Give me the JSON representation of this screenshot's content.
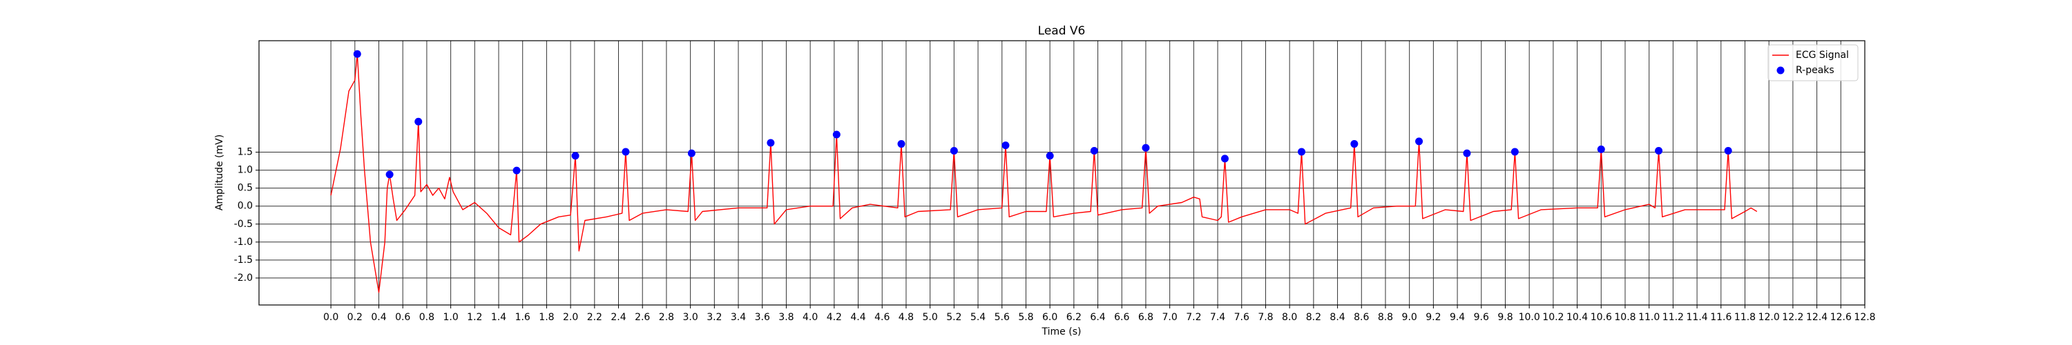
{
  "chart_data": {
    "type": "line",
    "title": "Lead V6",
    "x_label": "Time (s)",
    "y_label": "Amplitude (mV)",
    "xlim": [
      -0.6,
      12.8
    ],
    "ylim": [
      -2.75,
      4.6
    ],
    "xticks": [
      {
        "value": 0,
        "label": "0.0"
      },
      0.2,
      0.4,
      0.6,
      0.8,
      {
        "value": 1,
        "label": "1.0"
      },
      1.2,
      1.4,
      1.6,
      1.8,
      {
        "value": 2,
        "label": "2.0"
      },
      2.2,
      2.4,
      2.6,
      2.8,
      {
        "value": 3,
        "label": "3.0"
      },
      3.2,
      3.4,
      3.6,
      3.8,
      {
        "value": 4,
        "label": "4.0"
      },
      4.2,
      4.4,
      4.6,
      4.8,
      {
        "value": 5,
        "label": "5.0"
      },
      5.2,
      5.4,
      5.6,
      5.8,
      {
        "value": 6,
        "label": "6.0"
      },
      6.2,
      6.4,
      6.6,
      6.8,
      {
        "value": 7,
        "label": "7.0"
      },
      7.2,
      7.4,
      7.6,
      7.8,
      {
        "value": 8,
        "label": "8.0"
      },
      8.2,
      8.4,
      8.6,
      8.8,
      {
        "value": 9,
        "label": "9.0"
      },
      9.2,
      9.4,
      9.6,
      9.8,
      {
        "value": 10,
        "label": "10.0"
      },
      10.2,
      10.4,
      10.6,
      10.8,
      {
        "value": 11,
        "label": "11.0"
      },
      11.2,
      11.4,
      11.6,
      11.8,
      {
        "value": 12,
        "label": "12.0"
      },
      12.2,
      12.4,
      12.6,
      12.8
    ],
    "yticks": [
      {
        "value": -2,
        "label": "-2.0"
      },
      -1.5,
      {
        "value": -1,
        "label": "-1.0"
      },
      -0.5,
      {
        "value": 0,
        "label": "0.0"
      },
      0.5,
      {
        "value": 1,
        "label": "1.0"
      },
      1.5
    ],
    "grid": true,
    "legend": "upper right",
    "series": [
      {
        "name": "ECG Signal",
        "type": "line",
        "color": "#ff0000",
        "x": [
          0.0,
          0.08,
          0.15,
          0.2,
          0.22,
          0.25,
          0.28,
          0.33,
          0.4,
          0.45,
          0.47,
          0.49,
          0.52,
          0.55,
          0.62,
          0.7,
          0.73,
          0.75,
          0.8,
          0.85,
          0.9,
          0.95,
          0.99,
          1.02,
          1.1,
          1.2,
          1.3,
          1.4,
          1.5,
          1.55,
          1.57,
          1.65,
          1.75,
          1.9,
          2.0,
          2.04,
          2.07,
          2.12,
          2.3,
          2.43,
          2.46,
          2.49,
          2.6,
          2.8,
          2.98,
          3.01,
          3.04,
          3.1,
          3.4,
          3.64,
          3.67,
          3.7,
          3.8,
          4.0,
          4.19,
          4.22,
          4.25,
          4.35,
          4.5,
          4.73,
          4.76,
          4.79,
          4.9,
          5.17,
          5.2,
          5.23,
          5.4,
          5.6,
          5.63,
          5.66,
          5.8,
          5.97,
          6.0,
          6.03,
          6.2,
          6.34,
          6.37,
          6.4,
          6.6,
          6.77,
          6.8,
          6.83,
          6.9,
          7.1,
          7.2,
          7.25,
          7.27,
          7.4,
          7.43,
          7.46,
          7.49,
          7.6,
          7.8,
          8.0,
          8.07,
          8.1,
          8.13,
          8.3,
          8.51,
          8.54,
          8.57,
          8.7,
          8.9,
          9.05,
          9.08,
          9.11,
          9.3,
          9.45,
          9.48,
          9.51,
          9.7,
          9.85,
          9.88,
          9.91,
          10.1,
          10.4,
          10.57,
          10.6,
          10.63,
          10.8,
          11.0,
          11.05,
          11.08,
          11.11,
          11.3,
          11.63,
          11.66,
          11.69,
          11.8,
          11.85,
          11.9
        ],
        "values": [
          0.3,
          1.6,
          3.2,
          3.5,
          4.23,
          2.5,
          1.0,
          -1.0,
          -2.4,
          -1.0,
          0.5,
          0.88,
          0.2,
          -0.4,
          -0.1,
          0.3,
          2.35,
          0.4,
          0.6,
          0.3,
          0.5,
          0.2,
          0.8,
          0.4,
          -0.1,
          0.1,
          -0.2,
          -0.6,
          -0.8,
          0.99,
          -1.0,
          -0.8,
          -0.5,
          -0.3,
          -0.25,
          1.4,
          -1.25,
          -0.4,
          -0.3,
          -0.2,
          1.51,
          -0.4,
          -0.2,
          -0.1,
          -0.15,
          1.47,
          -0.4,
          -0.15,
          -0.05,
          -0.05,
          1.76,
          -0.5,
          -0.1,
          0.0,
          0.0,
          1.99,
          -0.35,
          -0.05,
          0.05,
          -0.05,
          1.73,
          -0.3,
          -0.15,
          -0.1,
          1.54,
          -0.3,
          -0.1,
          -0.05,
          1.69,
          -0.3,
          -0.15,
          -0.15,
          1.4,
          -0.3,
          -0.2,
          -0.15,
          1.54,
          -0.25,
          -0.1,
          -0.05,
          1.62,
          -0.2,
          0.0,
          0.1,
          0.25,
          0.2,
          -0.3,
          -0.4,
          -0.3,
          1.32,
          -0.45,
          -0.3,
          -0.1,
          -0.1,
          -0.2,
          1.51,
          -0.5,
          -0.2,
          -0.05,
          1.73,
          -0.3,
          -0.05,
          0.0,
          0.0,
          1.8,
          -0.35,
          -0.1,
          -0.15,
          1.47,
          -0.4,
          -0.15,
          -0.1,
          1.51,
          -0.35,
          -0.1,
          -0.05,
          -0.05,
          1.58,
          -0.3,
          -0.1,
          0.05,
          -0.05,
          1.54,
          -0.3,
          -0.1,
          -0.1,
          1.54,
          -0.35,
          -0.15,
          -0.05,
          -0.15
        ]
      },
      {
        "name": "R-peaks",
        "type": "scatter",
        "color": "#0000ff",
        "x": [
          0.22,
          0.49,
          0.73,
          1.55,
          2.04,
          2.46,
          3.01,
          3.67,
          4.22,
          4.76,
          5.2,
          5.63,
          6.0,
          6.37,
          6.8,
          7.46,
          8.1,
          8.54,
          9.08,
          9.48,
          9.88,
          10.6,
          11.08,
          11.66
        ],
        "values": [
          4.23,
          0.88,
          2.35,
          0.99,
          1.4,
          1.51,
          1.47,
          1.76,
          1.99,
          1.73,
          1.54,
          1.69,
          1.4,
          1.54,
          1.62,
          1.32,
          1.51,
          1.73,
          1.8,
          1.47,
          1.51,
          1.58,
          1.54,
          1.54
        ]
      }
    ]
  }
}
